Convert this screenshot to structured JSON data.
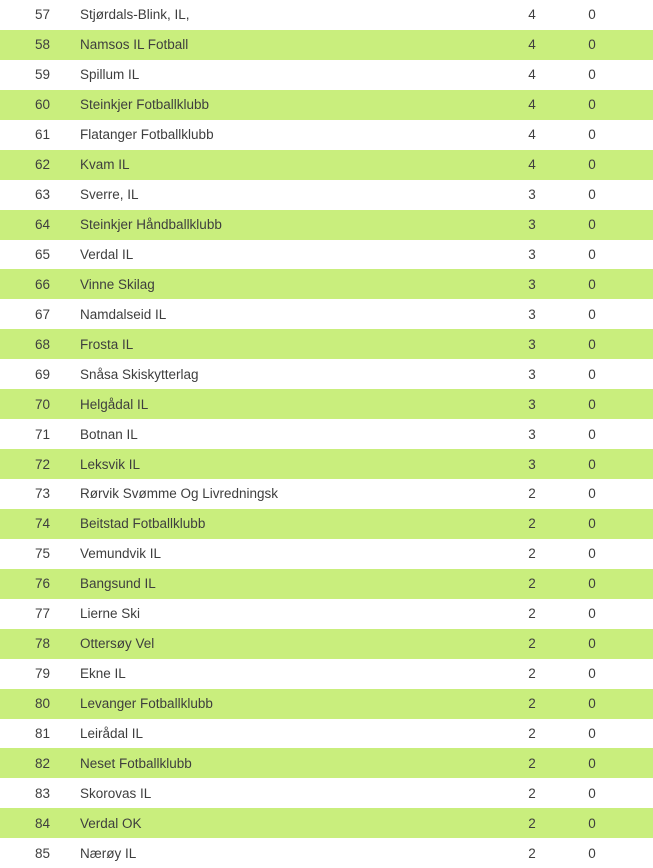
{
  "table": {
    "alt_row_background": "#c9ee7d",
    "text_color": "#3e3e3e",
    "rows": [
      {
        "rank": "57",
        "name": "Stjørdals-Blink, IL,",
        "col1": "4",
        "col2": "0"
      },
      {
        "rank": "58",
        "name": "Namsos IL Fotball",
        "col1": "4",
        "col2": "0"
      },
      {
        "rank": "59",
        "name": "Spillum IL",
        "col1": "4",
        "col2": "0"
      },
      {
        "rank": "60",
        "name": "Steinkjer Fotballklubb",
        "col1": "4",
        "col2": "0"
      },
      {
        "rank": "61",
        "name": "Flatanger Fotballklubb",
        "col1": "4",
        "col2": "0"
      },
      {
        "rank": "62",
        "name": "Kvam IL",
        "col1": "4",
        "col2": "0"
      },
      {
        "rank": "63",
        "name": "Sverre, IL",
        "col1": "3",
        "col2": "0"
      },
      {
        "rank": "64",
        "name": "Steinkjer Håndballklubb",
        "col1": "3",
        "col2": "0"
      },
      {
        "rank": "65",
        "name": "Verdal IL",
        "col1": "3",
        "col2": "0"
      },
      {
        "rank": "66",
        "name": "Vinne Skilag",
        "col1": "3",
        "col2": "0"
      },
      {
        "rank": "67",
        "name": "Namdalseid IL",
        "col1": "3",
        "col2": "0"
      },
      {
        "rank": "68",
        "name": "Frosta IL",
        "col1": "3",
        "col2": "0"
      },
      {
        "rank": "69",
        "name": "Snåsa Skiskytterlag",
        "col1": "3",
        "col2": "0"
      },
      {
        "rank": "70",
        "name": "Helgådal IL",
        "col1": "3",
        "col2": "0"
      },
      {
        "rank": "71",
        "name": "Botnan IL",
        "col1": "3",
        "col2": "0"
      },
      {
        "rank": "72",
        "name": "Leksvik IL",
        "col1": "3",
        "col2": "0"
      },
      {
        "rank": "73",
        "name": "Rørvik Svømme Og Livredningsk",
        "col1": "2",
        "col2": "0"
      },
      {
        "rank": "74",
        "name": "Beitstad Fotballklubb",
        "col1": "2",
        "col2": "0"
      },
      {
        "rank": "75",
        "name": "Vemundvik IL",
        "col1": "2",
        "col2": "0"
      },
      {
        "rank": "76",
        "name": "Bangsund IL",
        "col1": "2",
        "col2": "0"
      },
      {
        "rank": "77",
        "name": "Lierne Ski",
        "col1": "2",
        "col2": "0"
      },
      {
        "rank": "78",
        "name": "Ottersøy Vel",
        "col1": "2",
        "col2": "0"
      },
      {
        "rank": "79",
        "name": "Ekne IL",
        "col1": "2",
        "col2": "0"
      },
      {
        "rank": "80",
        "name": "Levanger Fotballklubb",
        "col1": "2",
        "col2": "0"
      },
      {
        "rank": "81",
        "name": "Leirådal IL",
        "col1": "2",
        "col2": "0"
      },
      {
        "rank": "82",
        "name": "Neset Fotballklubb",
        "col1": "2",
        "col2": "0"
      },
      {
        "rank": "83",
        "name": "Skorovas IL",
        "col1": "2",
        "col2": "0"
      },
      {
        "rank": "84",
        "name": "Verdal OK",
        "col1": "2",
        "col2": "0"
      },
      {
        "rank": "85",
        "name": "Nærøy IL",
        "col1": "2",
        "col2": "0"
      }
    ]
  }
}
